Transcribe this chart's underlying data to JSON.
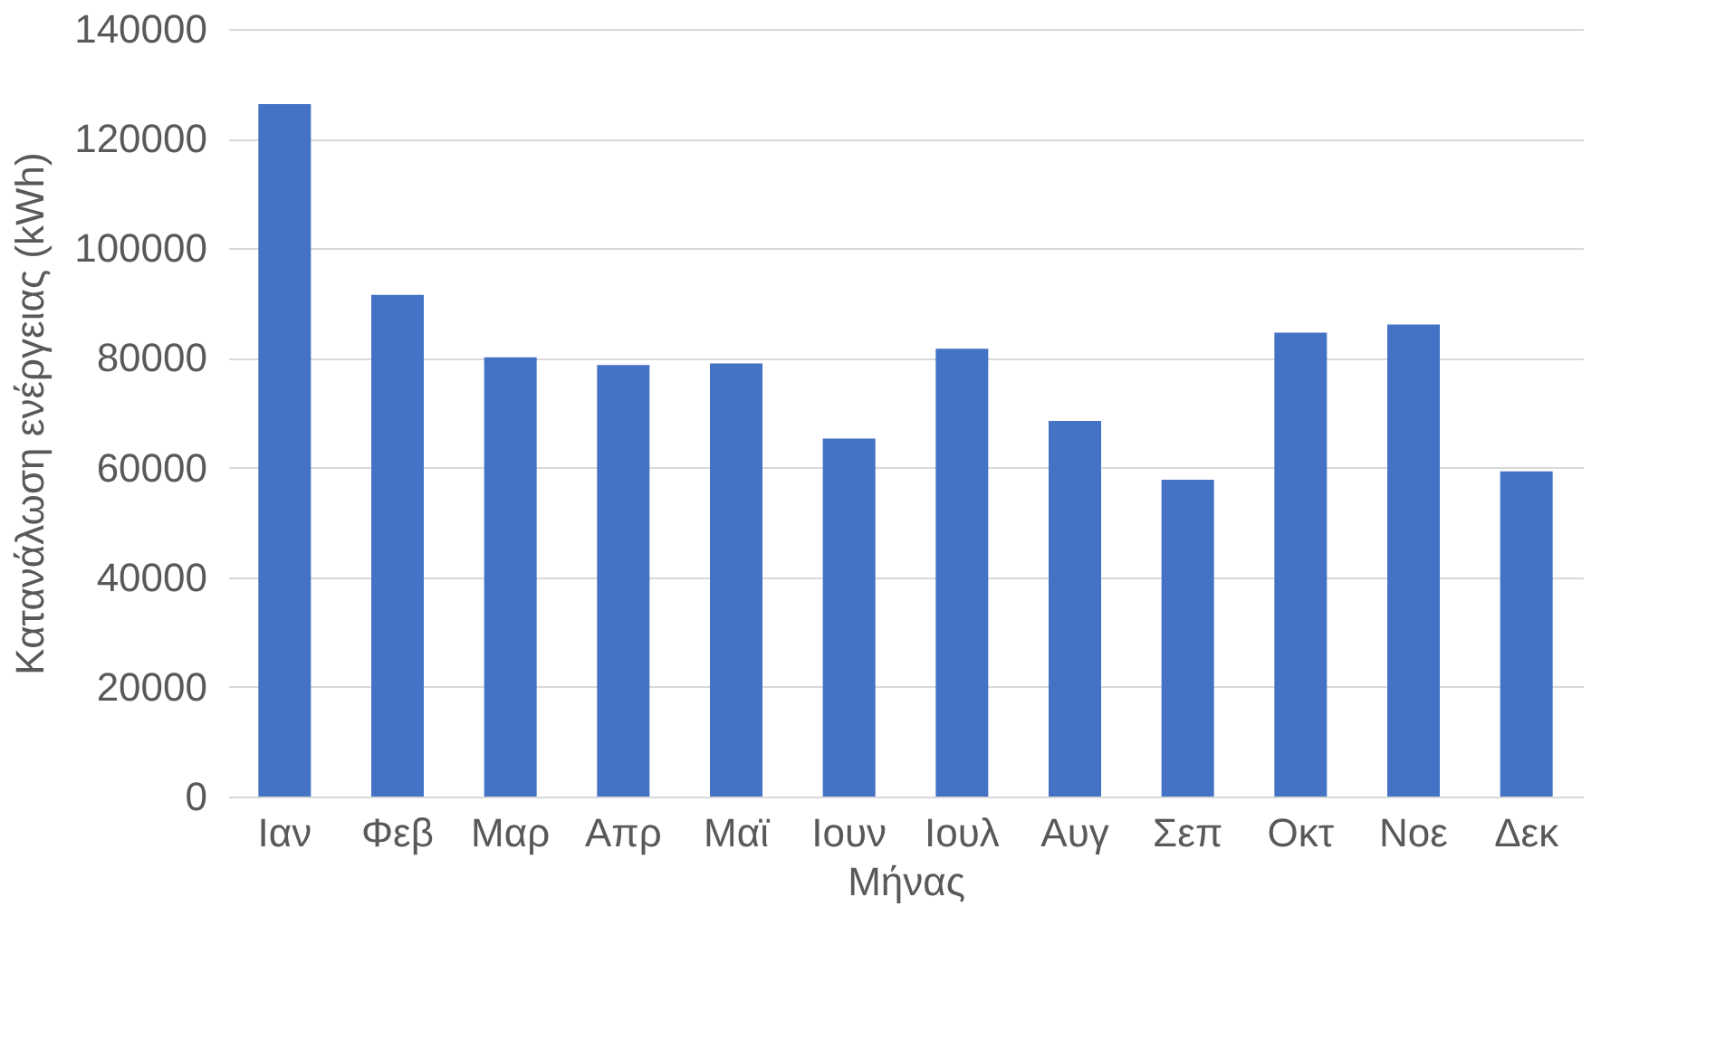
{
  "chart_data": {
    "type": "bar",
    "xlabel": "Μήνας",
    "ylabel": "Κατανάλωση ενέργειας (kWh)",
    "categories": [
      "Ιαν",
      "Φεβ",
      "Μαρ",
      "Απρ",
      "Μαϊ",
      "Ιουν",
      "Ιουλ",
      "Αυγ",
      "Σεπ",
      "Οκτ",
      "Νοε",
      "Δεκ"
    ],
    "values": [
      126300,
      91500,
      80100,
      78700,
      79000,
      65300,
      81700,
      68500,
      57800,
      84600,
      86100,
      59300
    ],
    "color": "#4472c4",
    "ylim": [
      0,
      140000
    ],
    "yticks": [
      0,
      20000,
      40000,
      60000,
      80000,
      100000,
      120000,
      140000
    ],
    "grid": "y"
  }
}
